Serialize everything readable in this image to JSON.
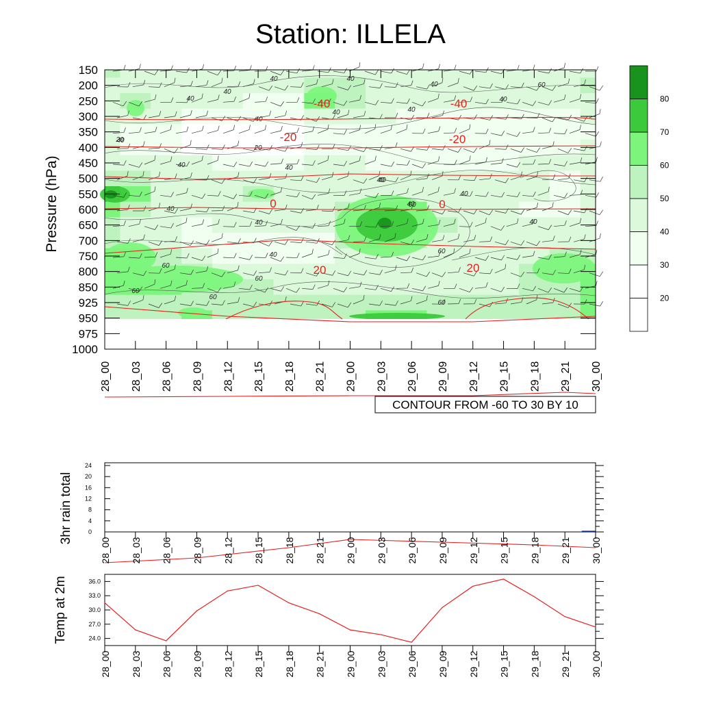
{
  "title": "Station: ILLELA",
  "chart_data": [
    {
      "type": "heatmap",
      "name": "pressure-time cross section (relative humidity filled, temperature contours, wind barbs)",
      "ylabel": "Pressure (hPa)",
      "pressure_levels": [
        150,
        200,
        250,
        300,
        350,
        400,
        450,
        500,
        550,
        600,
        650,
        700,
        750,
        800,
        850,
        925,
        950,
        975,
        1000
      ],
      "pressure_tick_labels": [
        "150",
        "200",
        "250",
        "300",
        "350",
        "400",
        "450",
        "500",
        "550",
        "600",
        "650",
        "700",
        "750",
        "800",
        "850",
        "925",
        "950",
        "975",
        "1000"
      ],
      "time_labels": [
        "28_00",
        "28_03",
        "28_06",
        "28_09",
        "28_12",
        "28_15",
        "28_18",
        "28_21",
        "29_00",
        "29_03",
        "29_06",
        "29_09",
        "29_12",
        "29_15",
        "29_18",
        "29_21",
        "30_00"
      ],
      "contour_info": "CONTOUR FROM -60 TO 30 BY 10",
      "colorbar": {
        "levels": [
          20,
          30,
          40,
          50,
          60,
          70,
          80
        ],
        "tick_labels": [
          "20",
          "30",
          "40",
          "50",
          "60",
          "70",
          "80"
        ],
        "colors": [
          "#ffffff",
          "#f0fff0",
          "#dcf9dc",
          "#bef2be",
          "#7df57d",
          "#3cc93c",
          "#18931e"
        ]
      },
      "humidity_bands": [
        {
          "level": 150,
          "values": [
            50,
            45,
            45,
            45,
            40,
            40,
            40,
            40,
            40,
            40,
            40,
            40,
            40,
            40,
            40,
            40,
            45
          ]
        },
        {
          "level": 200,
          "values": [
            45,
            40,
            40,
            40,
            40,
            40,
            40,
            50,
            50,
            45,
            40,
            40,
            40,
            40,
            40,
            45,
            50
          ]
        },
        {
          "level": 250,
          "values": [
            40,
            50,
            40,
            40,
            40,
            35,
            35,
            60,
            50,
            45,
            40,
            40,
            40,
            40,
            40,
            40,
            40
          ]
        },
        {
          "level": 300,
          "values": [
            40,
            40,
            40,
            35,
            30,
            30,
            30,
            40,
            40,
            40,
            35,
            35,
            35,
            35,
            35,
            35,
            40
          ]
        },
        {
          "level": 350,
          "values": [
            40,
            35,
            30,
            25,
            25,
            20,
            25,
            30,
            30,
            30,
            30,
            30,
            30,
            30,
            30,
            30,
            35
          ]
        },
        {
          "level": 400,
          "values": [
            40,
            35,
            30,
            25,
            20,
            20,
            25,
            30,
            30,
            30,
            30,
            30,
            30,
            30,
            30,
            35,
            40
          ]
        },
        {
          "level": 450,
          "values": [
            40,
            40,
            40,
            40,
            35,
            30,
            35,
            40,
            40,
            35,
            35,
            35,
            35,
            35,
            40,
            40,
            40
          ]
        },
        {
          "level": 500,
          "values": [
            50,
            50,
            45,
            45,
            45,
            45,
            45,
            40,
            40,
            40,
            40,
            40,
            40,
            40,
            40,
            35,
            40
          ]
        },
        {
          "level": 550,
          "values": [
            75,
            65,
            45,
            40,
            45,
            55,
            45,
            40,
            40,
            45,
            45,
            40,
            40,
            40,
            40,
            35,
            40
          ]
        },
        {
          "level": 600,
          "values": [
            60,
            50,
            40,
            40,
            40,
            40,
            40,
            40,
            50,
            65,
            60,
            45,
            40,
            40,
            35,
            35,
            40
          ]
        },
        {
          "level": 650,
          "values": [
            50,
            40,
            40,
            35,
            40,
            40,
            40,
            40,
            50,
            75,
            65,
            50,
            40,
            40,
            40,
            40,
            40
          ]
        },
        {
          "level": 700,
          "values": [
            50,
            45,
            40,
            35,
            35,
            30,
            30,
            35,
            50,
            65,
            55,
            45,
            40,
            40,
            40,
            40,
            45
          ]
        },
        {
          "level": 750,
          "values": [
            65,
            60,
            50,
            40,
            35,
            35,
            35,
            35,
            40,
            45,
            45,
            40,
            40,
            40,
            45,
            55,
            55
          ]
        },
        {
          "level": 800,
          "values": [
            65,
            60,
            55,
            50,
            45,
            40,
            40,
            40,
            40,
            40,
            40,
            40,
            40,
            45,
            50,
            55,
            60
          ]
        },
        {
          "level": 850,
          "values": [
            60,
            60,
            60,
            55,
            50,
            50,
            45,
            45,
            45,
            45,
            45,
            45,
            45,
            45,
            50,
            55,
            65
          ]
        },
        {
          "level": 925,
          "values": [
            55,
            55,
            55,
            55,
            50,
            50,
            50,
            50,
            50,
            50,
            50,
            50,
            50,
            50,
            50,
            55,
            60
          ]
        },
        {
          "level": 950,
          "values": [
            50,
            50,
            55,
            60,
            50,
            50,
            50,
            50,
            55,
            60,
            60,
            50,
            50,
            50,
            50,
            55,
            60
          ]
        }
      ],
      "rh_contour_labels": [
        "40",
        "40",
        "40",
        "40",
        "40",
        "40",
        "40",
        "40",
        "40",
        "20",
        "20",
        "40",
        "40",
        "40",
        "40",
        "40",
        "40",
        "40",
        "60",
        "60",
        "60",
        "40",
        "60",
        "60",
        "60",
        "60",
        "60",
        "40",
        "40",
        "40"
      ],
      "temperature_contours": [
        {
          "value": -40,
          "label": "-40",
          "points": [
            [
              0,
              214
            ],
            [
              4,
              216
            ],
            [
              8,
              216
            ],
            [
              12,
              214
            ],
            [
              16,
              213
            ]
          ]
        },
        {
          "value": -40,
          "label": "",
          "points": [
            [
              0,
              258
            ],
            [
              3,
              262
            ],
            [
              6,
              258
            ],
            [
              8,
              254
            ],
            [
              11,
              256
            ],
            [
              14,
              257
            ],
            [
              16,
              257
            ]
          ]
        },
        {
          "value": -20,
          "label": "-20",
          "points": [
            [
              0,
              370
            ],
            [
              3,
              360
            ],
            [
              6,
              350
            ],
            [
              9,
              356
            ],
            [
              12,
              360
            ],
            [
              16,
              364
            ]
          ]
        },
        {
          "value": -20,
          "label": "",
          "points": [
            [
              0,
              305
            ],
            [
              3,
              303
            ],
            [
              7,
              306
            ],
            [
              11,
              306
            ],
            [
              16,
              305
            ]
          ]
        },
        {
          "value": 0,
          "label": "0",
          "points": [
            [
              0,
              448
            ],
            [
              4,
              462
            ],
            [
              8,
              470
            ],
            [
              12,
              470
            ],
            [
              16,
              462
            ]
          ]
        },
        {
          "value": 0,
          "label": "",
          "points": [
            [
              0,
              580
            ],
            [
              4,
              579
            ],
            [
              8,
              578
            ],
            [
              12,
              578
            ],
            [
              15,
              573
            ],
            [
              16,
              575
            ]
          ]
        },
        {
          "value": 20,
          "label": "20",
          "points": [
            [
              0,
              690
            ],
            [
              4,
              688
            ],
            [
              8,
              685
            ],
            [
              12,
              687
            ],
            [
              16,
              690
            ]
          ]
        },
        {
          "value": 20,
          "label": "",
          "points": [
            [
              0,
              822
            ],
            [
              3,
              815
            ],
            [
              6,
              800
            ],
            [
              8,
              788
            ],
            [
              11,
              792
            ],
            [
              14,
              796
            ],
            [
              16,
              800
            ]
          ]
        }
      ],
      "temperature_contour_labels": [
        "-40",
        "-40",
        "-20",
        "-20",
        "0",
        "0",
        "20",
        "20"
      ]
    },
    {
      "type": "bar",
      "name": "3hr rain total",
      "ylabel": "3hr rain total",
      "ylim": [
        0,
        24
      ],
      "yticks": [
        "0",
        "4",
        "8",
        "12",
        "16",
        "20",
        "24"
      ],
      "categories": [
        "28_00",
        "28_03",
        "28_06",
        "28_09",
        "28_12",
        "28_15",
        "28_18",
        "28_21",
        "29_00",
        "29_03",
        "29_06",
        "29_09",
        "29_12",
        "29_15",
        "29_18",
        "29_21",
        "30_00"
      ],
      "values": [
        0,
        0,
        0,
        0,
        0,
        0,
        0,
        0,
        0,
        0,
        0,
        0,
        0,
        0,
        0,
        0,
        0.4
      ]
    },
    {
      "type": "line",
      "name": "Temp at 2m",
      "ylabel": "Temp at 2m",
      "ylim": [
        22.5,
        37.5
      ],
      "yticks": [
        "24.0",
        "27.0",
        "30.0",
        "33.0",
        "36.0"
      ],
      "categories": [
        "28_00",
        "28_03",
        "28_06",
        "28_09",
        "28_12",
        "28_15",
        "28_18",
        "28_21",
        "29_00",
        "29_03",
        "29_06",
        "29_09",
        "29_12",
        "29_15",
        "29_18",
        "29_21",
        "30_00"
      ],
      "values": [
        31.5,
        25.8,
        23.5,
        29.8,
        34.0,
        35.2,
        31.5,
        29.2,
        25.8,
        24.8,
        23.2,
        30.5,
        35.0,
        36.5,
        32.8,
        28.6,
        26.4
      ]
    }
  ]
}
